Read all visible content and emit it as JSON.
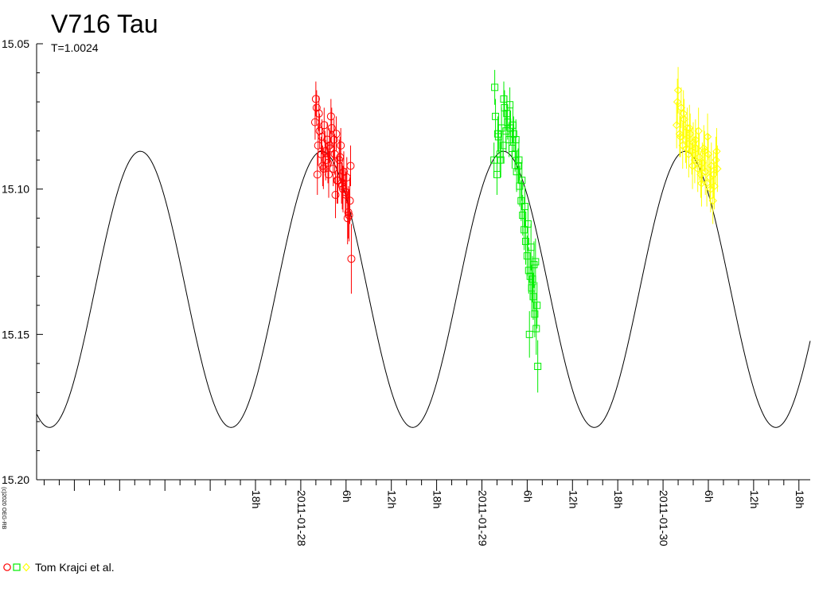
{
  "chart_data": {
    "type": "scatter",
    "title": "V716 Tau",
    "subtitle": "T=1.0024",
    "ylim": [
      15.2,
      15.05
    ],
    "yticks": [
      "15.05",
      "15.10",
      "15.15",
      "15.20"
    ],
    "x_axis": {
      "range_hours": [
        -11,
        66
      ],
      "tick_labels": [
        {
          "h": 18,
          "label": "18h"
        },
        {
          "h": 24,
          "label": "2011-01-28"
        },
        {
          "h": 30,
          "label": "6h"
        },
        {
          "h": 36,
          "label": "12h"
        },
        {
          "h": 42,
          "label": "18h"
        },
        {
          "h": 48,
          "label": "2011-01-29"
        },
        {
          "h": 54,
          "label": "6h"
        },
        {
          "h": 60,
          "label": "12h"
        },
        {
          "h": 66,
          "label": "18h"
        },
        {
          "h": 72,
          "label": "2011-01-30"
        },
        {
          "h": 78,
          "label": "6h"
        },
        {
          "h": 84,
          "label": "12h"
        },
        {
          "h": 90,
          "label": "18h"
        }
      ]
    },
    "model_curve": {
      "period_h": 24.06,
      "max_mag": 15.087,
      "min_mag": 15.182,
      "max_time_h": 26.8
    },
    "series": [
      {
        "marker": "circle",
        "color": "#ff0000",
        "x": [
          25.9,
          26.1,
          26.3,
          26.5,
          26.7,
          26.9,
          27.1,
          27.3,
          27.5,
          27.7,
          27.9,
          28.1,
          28.3,
          28.5,
          28.7,
          28.9,
          29.1,
          29.3,
          29.5,
          29.7,
          29.9,
          30.1,
          30.3,
          30.5,
          30.7,
          26.0,
          26.4,
          26.8,
          27.2,
          27.6,
          28.0,
          28.4,
          28.8,
          29.2,
          29.6,
          30.0,
          30.4,
          26.2,
          27.0,
          27.8,
          28.6,
          29.4,
          30.2,
          30.6
        ],
        "y": [
          15.077,
          15.072,
          15.085,
          15.08,
          15.088,
          15.092,
          15.078,
          15.09,
          15.083,
          15.095,
          15.086,
          15.079,
          15.093,
          15.088,
          15.081,
          15.097,
          15.09,
          15.085,
          15.099,
          15.094,
          15.101,
          15.096,
          15.108,
          15.104,
          15.124,
          15.069,
          15.074,
          15.082,
          15.087,
          15.091,
          15.075,
          15.083,
          15.097,
          15.089,
          15.1,
          15.102,
          15.109,
          15.095,
          15.093,
          15.085,
          15.102,
          15.098,
          15.11,
          15.092
        ],
        "err": [
          0.006,
          0.006,
          0.007,
          0.006,
          0.006,
          0.007,
          0.006,
          0.007,
          0.006,
          0.008,
          0.006,
          0.007,
          0.006,
          0.007,
          0.006,
          0.008,
          0.007,
          0.006,
          0.008,
          0.007,
          0.008,
          0.007,
          0.009,
          0.008,
          0.012,
          0.006,
          0.006,
          0.006,
          0.007,
          0.007,
          0.006,
          0.007,
          0.008,
          0.007,
          0.008,
          0.008,
          0.009,
          0.007,
          0.007,
          0.006,
          0.008,
          0.007,
          0.009,
          0.007
        ]
      },
      {
        "marker": "square",
        "color": "#00ee00",
        "x": [
          49.6,
          49.8,
          50.0,
          50.2,
          50.4,
          50.6,
          50.8,
          51.0,
          51.2,
          51.4,
          51.6,
          51.8,
          52.0,
          52.2,
          52.4,
          52.6,
          52.8,
          53.0,
          53.2,
          53.4,
          53.6,
          53.8,
          54.0,
          54.2,
          54.4,
          54.6,
          54.8,
          55.0,
          55.2,
          55.4,
          49.7,
          50.1,
          50.5,
          50.9,
          51.3,
          51.7,
          52.1,
          52.5,
          52.9,
          53.3,
          53.7,
          54.1,
          54.5,
          54.9,
          55.3,
          54.3,
          54.7,
          55.1
        ],
        "y": [
          15.09,
          15.075,
          15.095,
          15.082,
          15.088,
          15.079,
          15.085,
          15.072,
          15.08,
          15.077,
          15.083,
          15.079,
          15.086,
          15.081,
          15.088,
          15.094,
          15.092,
          15.099,
          15.104,
          15.109,
          15.114,
          15.118,
          15.123,
          15.128,
          15.13,
          15.134,
          15.137,
          15.143,
          15.148,
          15.161,
          15.065,
          15.081,
          15.09,
          15.069,
          15.074,
          15.071,
          15.078,
          15.083,
          15.09,
          15.097,
          15.106,
          15.112,
          15.12,
          15.126,
          15.14,
          15.15,
          15.131,
          15.125
        ],
        "err": [
          0.006,
          0.006,
          0.007,
          0.006,
          0.006,
          0.007,
          0.006,
          0.006,
          0.007,
          0.006,
          0.006,
          0.006,
          0.007,
          0.006,
          0.006,
          0.007,
          0.006,
          0.007,
          0.007,
          0.007,
          0.007,
          0.008,
          0.007,
          0.008,
          0.008,
          0.008,
          0.008,
          0.008,
          0.009,
          0.009,
          0.006,
          0.006,
          0.006,
          0.006,
          0.006,
          0.006,
          0.006,
          0.007,
          0.007,
          0.007,
          0.007,
          0.007,
          0.008,
          0.008,
          0.008,
          0.008,
          0.008,
          0.008
        ]
      },
      {
        "marker": "diamond",
        "color": "#ffff00",
        "x": [
          73.8,
          74.0,
          74.2,
          74.4,
          74.6,
          74.8,
          75.0,
          75.2,
          75.4,
          75.6,
          75.8,
          76.0,
          76.2,
          76.4,
          76.6,
          76.8,
          77.0,
          77.2,
          77.4,
          77.6,
          77.8,
          78.0,
          78.2,
          78.4,
          78.6,
          78.8,
          79.0,
          79.2,
          73.9,
          74.3,
          74.7,
          75.1,
          75.5,
          75.9,
          76.3,
          76.7,
          77.1,
          77.5,
          77.9,
          78.3,
          78.7,
          79.1
        ],
        "y": [
          15.078,
          15.066,
          15.081,
          15.072,
          15.085,
          15.076,
          15.083,
          15.079,
          15.088,
          15.081,
          15.087,
          15.084,
          15.09,
          15.086,
          15.093,
          15.089,
          15.095,
          15.091,
          15.086,
          15.094,
          15.098,
          15.088,
          15.096,
          15.092,
          15.104,
          15.099,
          15.09,
          15.093,
          15.07,
          15.082,
          15.074,
          15.086,
          15.079,
          15.092,
          15.083,
          15.08,
          15.098,
          15.087,
          15.082,
          15.1,
          15.095,
          15.087
        ],
        "err": [
          0.008,
          0.008,
          0.008,
          0.007,
          0.008,
          0.007,
          0.008,
          0.007,
          0.008,
          0.007,
          0.008,
          0.007,
          0.008,
          0.007,
          0.008,
          0.008,
          0.008,
          0.007,
          0.008,
          0.008,
          0.008,
          0.007,
          0.008,
          0.008,
          0.008,
          0.008,
          0.008,
          0.008,
          0.008,
          0.007,
          0.008,
          0.007,
          0.008,
          0.008,
          0.007,
          0.008,
          0.008,
          0.007,
          0.008,
          0.008,
          0.008,
          0.008
        ]
      }
    ],
    "grid": false
  },
  "legend": {
    "text": "Tom Krajci et al.",
    "colors": [
      "#ff0000",
      "#00ee00",
      "#ffff00"
    ]
  },
  "credit": "(c)2020 OEG-RB"
}
